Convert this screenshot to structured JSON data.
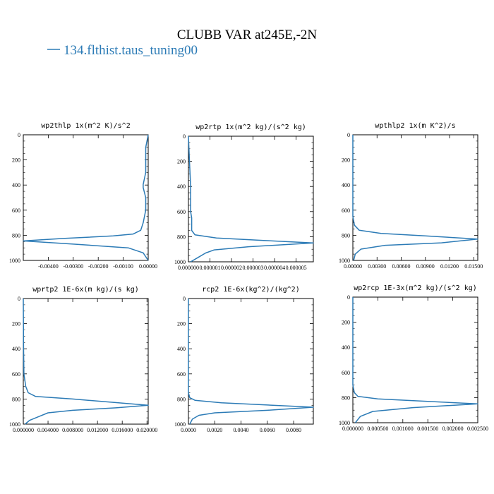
{
  "title": "CLUBB VAR at245E,-2N",
  "legend": {
    "label": "134.flthist.taus_tuning00",
    "color": "#2c7bb6"
  },
  "chart_data": [
    {
      "type": "line",
      "title": "wp2thlp   1x(m^2 K)/s^2",
      "xlim": [
        -0.005,
        0.0
      ],
      "ylim": [
        1000,
        0
      ],
      "xticks": [
        -0.004,
        -0.003,
        -0.002,
        -0.001,
        0.0
      ],
      "xtick_labels": [
        "-0.00400",
        "-0.00300",
        "-0.00200",
        "-0.00100",
        "0.00000"
      ],
      "yticks": [
        0,
        200,
        400,
        600,
        800,
        1000
      ],
      "series": [
        {
          "x": [
            0.0,
            -0.0001,
            -0.0001,
            -0.0001,
            -0.0002,
            -0.0002,
            -0.0001,
            -0.0001,
            -0.0002,
            -0.0003,
            -0.0006,
            -0.0014,
            -0.0034,
            -0.005,
            -0.003,
            -0.0008,
            -0.0002,
            0.0
          ],
          "y": [
            0,
            100,
            200,
            300,
            395,
            420,
            500,
            600,
            700,
            760,
            790,
            805,
            825,
            845,
            870,
            900,
            940,
            1000
          ]
        }
      ]
    },
    {
      "type": "line",
      "title": "wp2rtp   1x(m^2 kg)/(s^2 kg)",
      "xlim": [
        0.0,
        5.8e-06
      ],
      "ylim": [
        1000,
        0
      ],
      "xticks": [
        0.0,
        1e-06,
        2e-06,
        3e-06,
        4e-06,
        5e-06
      ],
      "xtick_labels": [
        "0.000000",
        "0.000001",
        "0.000002",
        "0.000003",
        "0.000004",
        "0.000005"
      ],
      "yticks": [
        0,
        200,
        400,
        600,
        800,
        1000
      ],
      "series": [
        {
          "x": [
            0.0,
            5e-08,
            1e-07,
            1e-07,
            1.5e-07,
            1.5e-07,
            3e-07,
            1.3e-06,
            3.5e-06,
            5.8e-06,
            2.8e-06,
            1.2e-06,
            8e-07,
            4e-07,
            1e-07
          ],
          "y": [
            0,
            200,
            400,
            600,
            650,
            750,
            785,
            810,
            830,
            850,
            880,
            905,
            930,
            970,
            1000
          ]
        }
      ]
    },
    {
      "type": "line",
      "title": "wpthlp2   1x(m K^2)/s",
      "xlim": [
        0.0,
        0.0155
      ],
      "ylim": [
        1000,
        0
      ],
      "xticks": [
        0.0,
        0.003,
        0.006,
        0.009,
        0.012,
        0.015
      ],
      "xtick_labels": [
        "0.00000",
        "0.00300",
        "0.00600",
        "0.00900",
        "0.01200",
        "0.01500"
      ],
      "yticks": [
        0,
        200,
        400,
        600,
        800,
        1000
      ],
      "series": [
        {
          "x": [
            0.0,
            0.0,
            0.0002,
            0.0008,
            0.0035,
            0.009,
            0.0155,
            0.011,
            0.004,
            0.001,
            0.0003,
            0.0001
          ],
          "y": [
            0,
            650,
            720,
            760,
            785,
            805,
            830,
            860,
            880,
            910,
            950,
            1000
          ]
        }
      ]
    },
    {
      "type": "line",
      "title": "wprtp2   1E-6x(m kg)/(s kg)",
      "xlim": [
        0.0,
        0.0202
      ],
      "ylim": [
        1000,
        0
      ],
      "xticks": [
        0.0,
        0.004,
        0.008,
        0.012,
        0.016,
        0.02
      ],
      "xtick_labels": [
        "0.000000",
        "0.004000",
        "0.008000",
        "0.012000",
        "0.016000",
        "0.020000"
      ],
      "yticks": [
        0,
        200,
        400,
        600,
        800,
        1000
      ],
      "series": [
        {
          "x": [
            0.0,
            5e-05,
            0.0001,
            0.0004,
            0.0008,
            0.002,
            0.008,
            0.0202,
            0.015,
            0.008,
            0.004,
            0.0025,
            0.001,
            0.0003
          ],
          "y": [
            0,
            400,
            600,
            700,
            750,
            780,
            800,
            850,
            870,
            890,
            910,
            940,
            970,
            1000
          ]
        }
      ]
    },
    {
      "type": "line",
      "title": "rcp2   1E-6x(kg^2)/(kg^2)",
      "xlim": [
        0.0,
        0.0095
      ],
      "ylim": [
        1000,
        0
      ],
      "xticks": [
        0.0,
        0.002,
        0.004,
        0.006,
        0.008
      ],
      "xtick_labels": [
        "0.0000",
        "0.0020",
        "0.0040",
        "0.0060",
        "0.0080"
      ],
      "yticks": [
        0,
        200,
        400,
        600,
        800,
        1000
      ],
      "series": [
        {
          "x": [
            0.0,
            0.0,
            0.0001,
            0.0005,
            0.0025,
            0.0095,
            0.006,
            0.002,
            0.0008,
            0.0003,
            0.0001
          ],
          "y": [
            0,
            750,
            790,
            810,
            830,
            865,
            890,
            910,
            930,
            960,
            1000
          ]
        }
      ]
    },
    {
      "type": "line",
      "title": "wp2rcp   1E-3x(m^2 kg)/(s^2 kg)",
      "xlim": [
        0.0,
        0.0025
      ],
      "ylim": [
        1000,
        0
      ],
      "xticks": [
        0.0,
        0.0005,
        0.001,
        0.0015,
        0.002,
        0.0025
      ],
      "xtick_labels": [
        "0.000000",
        "0.000500",
        "0.001000",
        "0.001500",
        "0.002000",
        "0.002500"
      ],
      "yticks": [
        0,
        200,
        400,
        600,
        800,
        1000
      ],
      "series": [
        {
          "x": [
            0.0,
            0.0,
            3e-05,
            0.0001,
            0.0005,
            0.0025,
            0.0012,
            0.0004,
            0.00015,
            5e-05
          ],
          "y": [
            0,
            700,
            760,
            790,
            810,
            850,
            880,
            910,
            950,
            1000
          ]
        }
      ]
    }
  ]
}
